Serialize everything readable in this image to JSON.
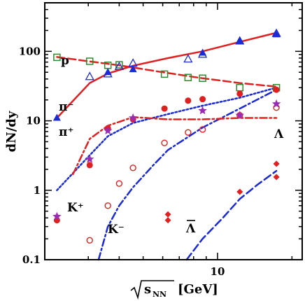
{
  "chart_data": {
    "type": "scatter",
    "xscale": "log",
    "yscale": "log",
    "xlim": [
      2.0,
      22.0
    ],
    "ylim": [
      0.1,
      500
    ],
    "xlabel_root": "s",
    "xlabel_sub": "NN",
    "xlabel_unit": "[GeV]",
    "ylabel": "dN/dy",
    "x_ticks": [
      {
        "value": 10,
        "label": "10"
      }
    ],
    "y_ticks": [
      {
        "value": 0.1,
        "label": "0.1"
      },
      {
        "value": 1,
        "label": "1"
      },
      {
        "value": 10,
        "label": "10"
      },
      {
        "value": 100,
        "label": "100"
      }
    ],
    "grid": false,
    "series": [
      {
        "label": "p",
        "color": "#2e8b2e",
        "marker": "open-square",
        "points": [
          [
            2.24,
            82
          ],
          [
            3.04,
            72
          ],
          [
            3.6,
            63
          ],
          [
            4.0,
            64
          ],
          [
            6.1,
            47
          ],
          [
            7.6,
            42
          ],
          [
            8.7,
            41
          ],
          [
            12.3,
            30
          ],
          [
            17.3,
            30
          ]
        ],
        "curve_style": "dashed",
        "curve_color": "#e02020",
        "curve": [
          [
            2.24,
            83
          ],
          [
            3.0,
            72
          ],
          [
            4.0,
            63
          ],
          [
            6.0,
            50
          ],
          [
            8.7,
            41
          ],
          [
            12.3,
            35
          ],
          [
            17.3,
            31
          ]
        ]
      },
      {
        "label": "π⁻",
        "color": "#1a2ad8",
        "marker": "open-triangle",
        "points": [
          [
            3.04,
            43
          ],
          [
            3.6,
            47
          ],
          [
            4.0,
            60
          ],
          [
            4.55,
            67
          ],
          [
            7.6,
            77
          ],
          [
            8.7,
            90
          ],
          [
            12.3,
            140
          ],
          [
            17.3,
            180
          ]
        ]
      },
      {
        "label": "π⁺",
        "color": "#1a2ad8",
        "marker": "filled-triangle",
        "points": [
          [
            2.24,
            11
          ],
          [
            3.6,
            50
          ],
          [
            4.55,
            55
          ],
          [
            8.7,
            95
          ],
          [
            12.3,
            140
          ],
          [
            17.3,
            175
          ]
        ],
        "curve_style": "solid",
        "curve_color": "#e02020",
        "curve": [
          [
            2.24,
            11
          ],
          [
            3.04,
            35
          ],
          [
            3.6,
            48
          ],
          [
            4.55,
            62
          ],
          [
            6.3,
            80
          ],
          [
            8.7,
            100
          ],
          [
            12.3,
            137
          ],
          [
            17.3,
            185
          ]
        ]
      },
      {
        "label": "K⁺",
        "color": "#e02020",
        "marker": "filled-circle",
        "points": [
          [
            2.24,
            0.37
          ],
          [
            3.04,
            2.3
          ],
          [
            3.6,
            7.8
          ],
          [
            4.55,
            10.5
          ],
          [
            6.1,
            15
          ],
          [
            7.6,
            19.5
          ],
          [
            8.7,
            20.5
          ],
          [
            12.3,
            24.5
          ],
          [
            17.3,
            28
          ]
        ],
        "curve_style": "dotted",
        "curve_color": "#1a2ad8",
        "curve": [
          [
            2.24,
            1.0
          ],
          [
            3.04,
            3.2
          ],
          [
            3.6,
            6.0
          ],
          [
            4.55,
            9.3
          ],
          [
            6.3,
            12.5
          ],
          [
            8.7,
            16.5
          ],
          [
            12.3,
            21.5
          ],
          [
            17.3,
            30
          ]
        ]
      },
      {
        "label": "K⁻",
        "color": "#e02020",
        "marker": "open-circle",
        "points": [
          [
            3.04,
            0.19
          ],
          [
            3.6,
            0.6
          ],
          [
            4.0,
            1.25
          ],
          [
            4.55,
            2.1
          ],
          [
            6.1,
            4.8
          ],
          [
            7.6,
            6.8
          ],
          [
            8.7,
            7.5
          ],
          [
            12.3,
            12
          ],
          [
            17.3,
            15.5
          ]
        ],
        "curve_style": "dash-dot",
        "curve_color": "#1a2ad8",
        "curve": [
          [
            3.3,
            0.1
          ],
          [
            3.6,
            0.3
          ],
          [
            4.0,
            0.6
          ],
          [
            4.55,
            1.1
          ],
          [
            5.5,
            2.3
          ],
          [
            6.3,
            3.8
          ],
          [
            8.7,
            8.0
          ],
          [
            12.3,
            15.0
          ],
          [
            17.3,
            28
          ]
        ]
      },
      {
        "label": "Λ",
        "color": "#9a2bb5",
        "marker": "filled-star",
        "points": [
          [
            2.24,
            0.42
          ],
          [
            3.04,
            2.8
          ],
          [
            3.6,
            7.2
          ],
          [
            4.55,
            11
          ],
          [
            8.7,
            14
          ],
          [
            12.3,
            12
          ],
          [
            17.3,
            17.5
          ]
        ],
        "curve_style": "dash-dot",
        "curve_color": "#e02020",
        "curve": [
          [
            2.6,
            1.7
          ],
          [
            3.04,
            5.5
          ],
          [
            3.6,
            8.5
          ],
          [
            4.55,
            11.3
          ],
          [
            6.3,
            10.5
          ],
          [
            8.7,
            10.5
          ],
          [
            12.3,
            11
          ],
          [
            17.3,
            11
          ]
        ]
      },
      {
        "label": "Λ̄",
        "label_overline": true,
        "color": "#e02020",
        "marker": "filled-diamond",
        "points": [
          [
            6.3,
            0.45
          ],
          [
            6.3,
            0.37
          ],
          [
            12.3,
            0.95
          ],
          [
            17.3,
            1.55
          ],
          [
            17.3,
            2.4
          ]
        ],
        "curve_style": "dashed",
        "curve_color": "#1a2ad8",
        "curve": [
          [
            7.5,
            0.1
          ],
          [
            8.7,
            0.2
          ],
          [
            10.5,
            0.4
          ],
          [
            12.3,
            0.75
          ],
          [
            14.5,
            1.2
          ],
          [
            17.3,
            1.9
          ]
        ]
      }
    ]
  }
}
